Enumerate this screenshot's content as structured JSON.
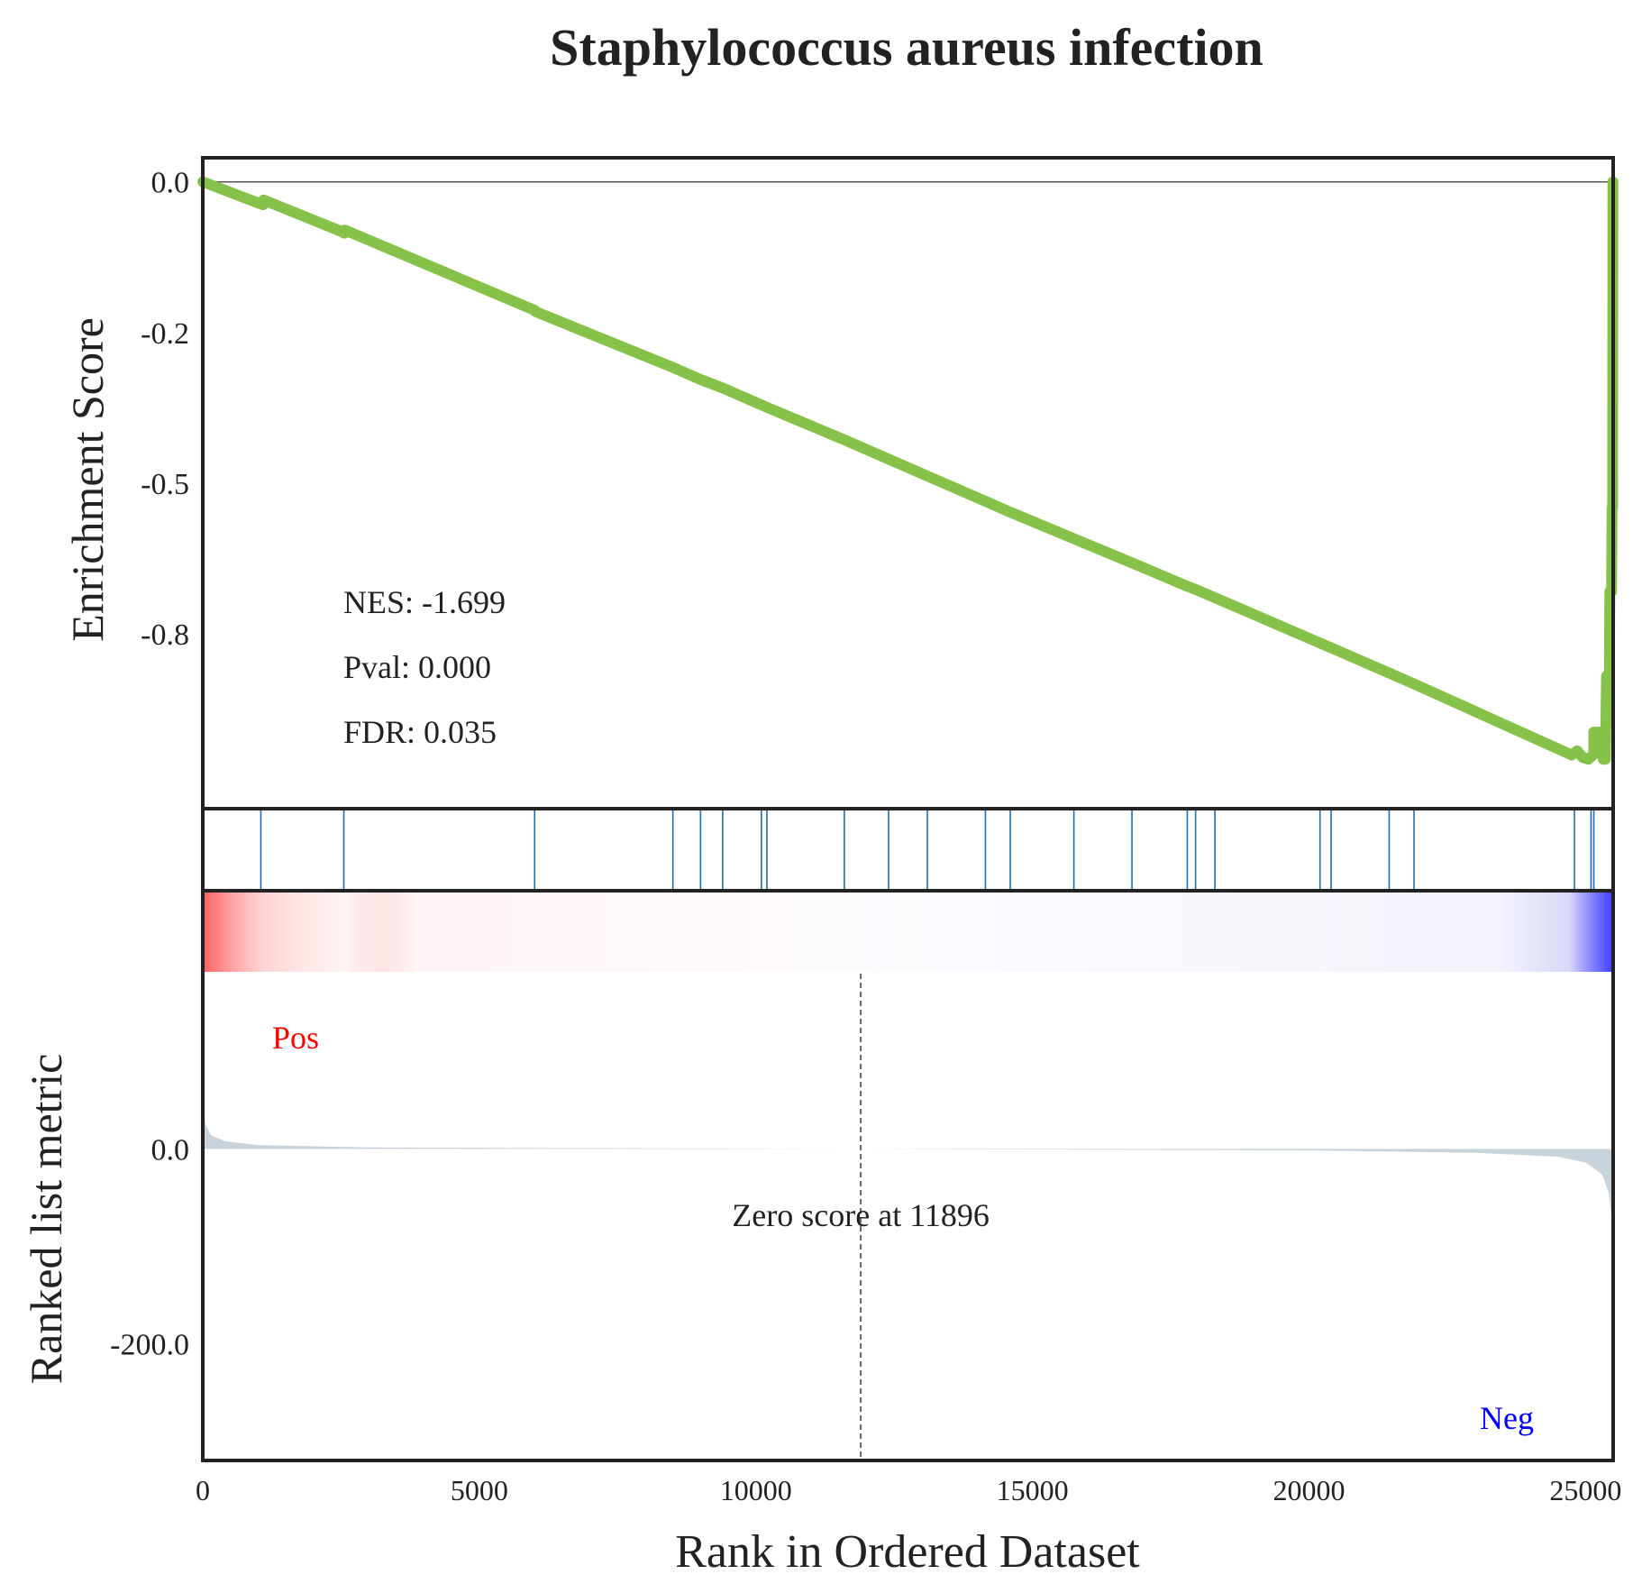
{
  "chart_data": {
    "type": "line",
    "title": "Staphylococcus aureus infection",
    "xlabel": "Rank in Ordered Dataset",
    "xlim": [
      0,
      25500
    ],
    "x_ticks": [
      0,
      5000,
      10000,
      15000,
      20000,
      25000
    ],
    "x_tick_labels": [
      "0",
      "5000",
      "10000",
      "15000",
      "20000",
      "25000"
    ],
    "es_panel": {
      "ylabel": "Enrichment Score",
      "ylim": [
        -1.04,
        0.04
      ],
      "y_ticks": [
        0.0,
        -0.25,
        -0.5,
        -0.75
      ],
      "y_tick_labels": [
        "0.0",
        "-0.2",
        "-0.5",
        "-0.8"
      ],
      "line_color": "#86c249",
      "zero_line": 0,
      "points": [
        [
          0,
          0.0
        ],
        [
          1000,
          -0.035
        ],
        [
          1090,
          -0.038
        ],
        [
          1100,
          -0.03
        ],
        [
          2500,
          -0.082
        ],
        [
          2560,
          -0.085
        ],
        [
          2570,
          -0.08
        ],
        [
          6000,
          -0.213
        ],
        [
          6010,
          -0.215
        ],
        [
          8500,
          -0.308
        ],
        [
          9000,
          -0.328
        ],
        [
          9400,
          -0.342
        ],
        [
          10100,
          -0.37
        ],
        [
          10200,
          -0.374
        ],
        [
          11600,
          -0.428
        ],
        [
          12400,
          -0.46
        ],
        [
          13100,
          -0.488
        ],
        [
          14200,
          -0.532
        ],
        [
          14600,
          -0.548
        ],
        [
          15800,
          -0.594
        ],
        [
          16900,
          -0.636
        ],
        [
          17800,
          -0.671
        ],
        [
          17950,
          -0.676
        ],
        [
          18300,
          -0.69
        ],
        [
          20200,
          -0.765
        ],
        [
          20400,
          -0.773
        ],
        [
          21500,
          -0.817
        ],
        [
          21900,
          -0.833
        ],
        [
          24750,
          -0.951
        ],
        [
          24850,
          -0.944
        ],
        [
          24950,
          -0.955
        ],
        [
          25050,
          -0.958
        ],
        [
          25150,
          -0.95
        ],
        [
          25150,
          -0.913
        ],
        [
          25300,
          -0.913
        ],
        [
          25320,
          -0.958
        ],
        [
          25360,
          -0.958
        ],
        [
          25380,
          -0.82
        ],
        [
          25430,
          -0.82
        ],
        [
          25440,
          -0.68
        ],
        [
          25470,
          -0.68
        ],
        [
          25480,
          -0.54
        ],
        [
          25490,
          -0.54
        ],
        [
          25495,
          0.0
        ]
      ],
      "annotations": [
        "NES: -1.699",
        "Pval: 0.000",
        "FDR: 0.035"
      ]
    },
    "hits": [
      1050,
      2550,
      6000,
      8500,
      9000,
      9400,
      10100,
      10200,
      11600,
      12400,
      13100,
      14150,
      14600,
      15750,
      16800,
      17800,
      17950,
      18300,
      20200,
      20400,
      21450,
      21900,
      24800,
      25100,
      25150,
      25480
    ],
    "hit_color": "#1f6fa8",
    "color_bar": {
      "pos_color": "#ff0000",
      "neg_color": "#0000ff"
    },
    "ranked_panel": {
      "ylabel": "Ranked list metric",
      "ylim": [
        -320,
        180
      ],
      "y_ticks": [
        0.0,
        -200.0
      ],
      "y_tick_labels": [
        "0.0",
        "-200.0"
      ],
      "fill_color": "#c8d3dc",
      "points": [
        [
          0,
          45
        ],
        [
          50,
          25
        ],
        [
          150,
          14
        ],
        [
          400,
          8
        ],
        [
          1000,
          4
        ],
        [
          3000,
          1.5
        ],
        [
          11896,
          0
        ],
        [
          20000,
          -1.5
        ],
        [
          23000,
          -4
        ],
        [
          24500,
          -8
        ],
        [
          25000,
          -14
        ],
        [
          25300,
          -26
        ],
        [
          25420,
          -45
        ],
        [
          25480,
          -75
        ],
        [
          25500,
          -92
        ]
      ],
      "zero_cross_label": "Zero score at 11896",
      "zero_cross_rank": 11896,
      "pos_label": "Pos",
      "neg_label": "Neg",
      "pos_label_color": "#ff0000",
      "neg_label_color": "#0000ff"
    }
  }
}
